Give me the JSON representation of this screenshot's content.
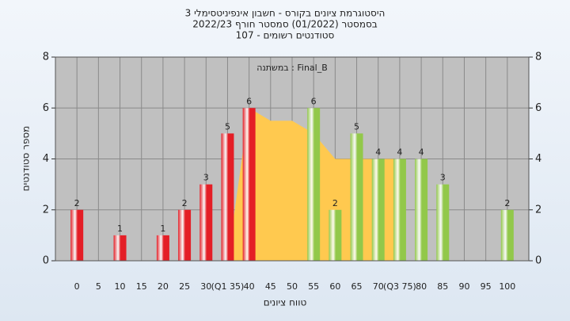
{
  "chart_data": {
    "type": "bar",
    "title": "היסטוגרמת ציונים בקורס - חשבון אינפיניטסימלי 3",
    "subtitle": "בסמסטר (01/2022) סמסטר חורף 2022/23",
    "subtitle2": "סטודנטים רשומים - 107",
    "annotation": "במשתנה : Final_B",
    "x_label": "טווח ציונים",
    "y_label": "מספר סטודנטים",
    "categories": [
      "0",
      "5",
      "10",
      "15",
      "20",
      "25",
      "30",
      "(Q1 35)",
      "40",
      "45",
      "50",
      "55",
      "60",
      "65",
      "70",
      "(Q3 75)",
      "80",
      "85",
      "90",
      "95",
      "100"
    ],
    "values": [
      2,
      0,
      1,
      0,
      1,
      2,
      3,
      5,
      6,
      0,
      0,
      6,
      2,
      5,
      4,
      4,
      4,
      3,
      0,
      0,
      2
    ],
    "colors": [
      "#e41e26",
      "#e41e26",
      "#e41e26",
      "#e41e26",
      "#e41e26",
      "#e41e26",
      "#e41e26",
      "#e41e26",
      "#e41e26",
      "#e41e26",
      "#e41e26",
      "#92c84a",
      "#92c84a",
      "#92c84a",
      "#92c84a",
      "#92c84a",
      "#92c84a",
      "#92c84a",
      "#92c84a",
      "#92c84a",
      "#92c84a"
    ],
    "area": {
      "color": "#ffc94f",
      "values": [
        null,
        null,
        null,
        null,
        null,
        null,
        null,
        0,
        6,
        5.5,
        5.5,
        5,
        4,
        4,
        4,
        4,
        null,
        null,
        null,
        null,
        null
      ]
    },
    "ylim": [
      0,
      8
    ],
    "yticks": [
      0,
      2,
      4,
      6,
      8
    ],
    "grid": true,
    "plot_background": "#c0c0c0"
  }
}
